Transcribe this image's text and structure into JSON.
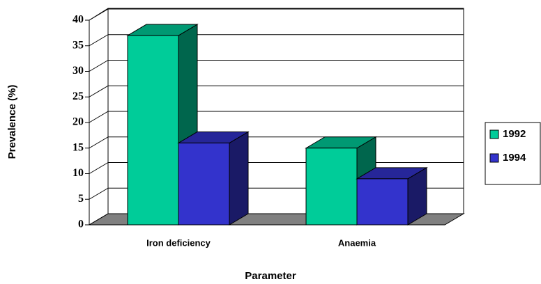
{
  "chart_data": {
    "type": "bar",
    "x_label": "Parameter",
    "y_label": "Prevalence (%)",
    "categories": [
      "Iron deficiency",
      "Anaemia"
    ],
    "series": [
      {
        "name": "1992",
        "color": "#00cc99",
        "values": [
          37,
          15
        ]
      },
      {
        "name": "1994",
        "color": "#3333cc",
        "values": [
          16,
          9
        ]
      }
    ],
    "ylim": [
      0,
      40
    ],
    "yticks": [
      0,
      5,
      10,
      15,
      20,
      25,
      30,
      35,
      40
    ],
    "grid": true,
    "legend": "right"
  }
}
